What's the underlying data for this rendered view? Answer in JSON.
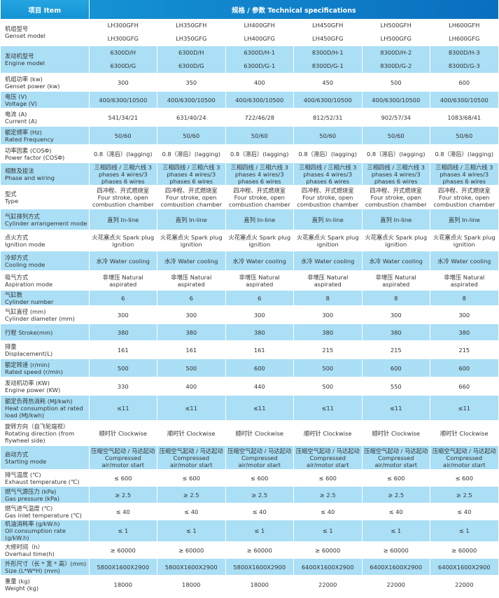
{
  "header": {
    "item_label": "项目 Item",
    "specs_label": "规格 / 参数   Technical specifications"
  },
  "header_colors": {
    "start": "#24a4e0",
    "end": "#0a6ec0",
    "row_alt": "#aadff5"
  },
  "rows": [
    {
      "zh": "机组型号",
      "en": "Genset model",
      "values": [
        [
          "LH300GFH",
          "LH300GFG"
        ],
        [
          "LH350GFH",
          "LH350GFG"
        ],
        [
          "LH400GFH",
          "LH400GFG"
        ],
        [
          "LH450GFH",
          "LH450GFG"
        ],
        [
          "LH500GFH",
          "LH500GFG"
        ],
        [
          "LH600GFH",
          "LH600GFG"
        ]
      ]
    },
    {
      "zh": "发动机型号",
      "en": "Engine model",
      "values": [
        [
          "6300D/H",
          "6300D/G"
        ],
        [
          "6300D/H",
          "6300D/G"
        ],
        [
          "6300D/H-1",
          "6300D/G-1"
        ],
        [
          "8300D/H-1",
          "8300D/G-1"
        ],
        [
          "8300D/H-2",
          "8300D/G-2"
        ],
        [
          "8300D/H-3",
          "8300D/G-3"
        ]
      ]
    },
    {
      "zh": "机组功率 (kw)",
      "en": "Genset power (kw)",
      "values": [
        "300",
        "350",
        "400",
        "450",
        "500",
        "600"
      ]
    },
    {
      "zh": "电压 (V)",
      "en": "Voltage (V)",
      "values": [
        "400/6300/10500",
        "400/6300/10500",
        "400/6300/10500",
        "400/6300/10500",
        "400/6300/10500",
        "400/6300/10500"
      ]
    },
    {
      "zh": "电流 (A)",
      "en": "Current (A)",
      "values": [
        "541/34/21",
        "631/40/24",
        "722/46/28",
        "812/52/31",
        "902/57/34",
        "1083/68/41"
      ]
    },
    {
      "zh": "额定频率 (Hz)",
      "en": "Rated Frequency",
      "values": [
        "50/60",
        "50/60",
        "50/60",
        "50/60",
        "50/60",
        "50/60"
      ]
    },
    {
      "zh": "功率因素 (COSΦ)",
      "en": "Power factor (COSΦ)",
      "values": [
        "0.8（滞后）(lagging)",
        "0.8（滞后）(lagging)",
        "0.8（滞后）(lagging)",
        "0.8（滞后）(lagging)",
        "0.8（滞后）(lagging)",
        "0.8（滞后）(lagging)"
      ]
    },
    {
      "zh": "相数及接法",
      "en": "Phase and wiring",
      "values": [
        "三相四线 / 三相六线 3 phases 4 wires/3 phases 6 wires",
        "三相四线 / 三相六线 3 phases 4 wires/3 phases 6 wires",
        "三相四线 / 三相六线 3 phases 4 wires/3 phases 6 wires",
        "三相四线 / 三相六线 3 phases 4 wires/3 phases 6 wires",
        "三相四线 / 三相六线 3 phases 4 wires/3 phases 6 wires",
        "三相四线 / 三相六线 3 phases 4 wires/3 phases 6 wires"
      ]
    },
    {
      "zh": "型式",
      "en": "Type",
      "values": [
        "四冲程、开式燃烧室 Four stroke, open combustion chamber",
        "四冲程、开式燃烧室 Four stroke, open combustion chamber",
        "四冲程、开式燃烧室 Four stroke, open combustion chamber",
        "四冲程、开式燃烧室 Four stroke, open combustion chamber",
        "四冲程、开式燃烧室 Four stroke, open combustion chamber",
        "四冲程、开式燃烧室 Four stroke, open combustion chamber"
      ]
    },
    {
      "zh": "气缸排列方式",
      "en": "Cylinder arrangement mode",
      "values": [
        "直列 In-line",
        "直列 In-line",
        "直列 In-line",
        "直列 In-line",
        "直列 In-line",
        "直列 In-line"
      ]
    },
    {
      "zh": "点火方式",
      "en": "Ignition mode",
      "values": [
        "火花塞点火 Spark plug ignition",
        "火花塞点火 Spark plug ignition",
        "火花塞点火 Spark plug ignition",
        "火花塞点火 Spark plug ignition",
        "火花塞点火 Spark plug ignition",
        "火花塞点火 Spark plug ignition"
      ]
    },
    {
      "zh": "冷却方式",
      "en": "Cooling mode",
      "values": [
        "水冷 Water cooling",
        "水冷 Water cooling",
        "水冷 Water cooling",
        "水冷 Water cooling",
        "水冷 Water cooling",
        "水冷 Water cooling"
      ]
    },
    {
      "zh": "吸气方式",
      "en": "Aspiration mode",
      "values": [
        "非增压 Natural aspirated",
        "非增压 Natural aspirated",
        "非增压 Natural aspirated",
        "非增压 Natural aspirated",
        "非增压 Natural aspirated",
        "非增压 Natural aspirated"
      ]
    },
    {
      "zh": "气缸数",
      "en": "Cylinder number",
      "values": [
        "6",
        "6",
        "6",
        "8",
        "8",
        "8"
      ]
    },
    {
      "zh": "气缸直径 (mm)",
      "en": "Cylinder diameter (mm)",
      "values": [
        "300",
        "300",
        "300",
        "300",
        "300",
        "300"
      ]
    },
    {
      "zh": "",
      "en": "行程 Stroke(mm)",
      "values": [
        "380",
        "380",
        "380",
        "380",
        "380",
        "380"
      ]
    },
    {
      "zh": "排量",
      "en": "Displacement(L)",
      "values": [
        "161",
        "161",
        "161",
        "215",
        "215",
        "215"
      ]
    },
    {
      "zh": "额定转速 (r/min)",
      "en": "Rated speed (r/min)",
      "values": [
        "500",
        "500",
        "600",
        "500",
        "600",
        "600"
      ]
    },
    {
      "zh": "发动机功率 (KW)",
      "en": "Engine power (KW)",
      "values": [
        "330",
        "400",
        "440",
        "500",
        "550",
        "660"
      ]
    },
    {
      "zh": "额定负荷热消耗 (MJ/kwh)",
      "en": "Heat consumption at rated load (MJ/kwh)",
      "values": [
        "≤11",
        "≤11",
        "≤11",
        "≤11",
        "≤11",
        "≤11"
      ]
    },
    {
      "zh": "旋转方向（自飞轮端视）",
      "en": "Rotating direction (from flywheel side)",
      "values": [
        "顺时针 Clockwise",
        "顺时针 Clockwise",
        "顺时针 Clockwise",
        "顺时针 Clockwise",
        "顺时针 Clockwise",
        "顺时针 Clockwise"
      ]
    },
    {
      "zh": "启动方式",
      "en": "Starting mode",
      "values": [
        "压缩空气起动 / 马达起动 Compressed air/motor start",
        "压缩空气起动 / 马达起动 Compressed air/motor start",
        "压缩空气起动 / 马达起动 Compressed air/motor start",
        "压缩空气起动 / 马达起动 Compressed air/motor start",
        "压缩空气起动 / 马达起动 Compressed air/motor start",
        "压缩空气起动 / 马达起动 Compressed air/motor start"
      ]
    },
    {
      "zh": "排气温度 (℃)",
      "en": "Exhaust temperature (℃)",
      "values": [
        "≤ 600",
        "≤ 600",
        "≤ 600",
        "≤ 600",
        "≤ 600",
        "≤ 600"
      ]
    },
    {
      "zh": "燃气气源压力 (kPa)",
      "en": "Gas pressure (kPa)",
      "values": [
        "≥ 2.5",
        "≥ 2.5",
        "≥ 2.5",
        "≥ 2.5",
        "≥ 2.5",
        "≥ 2.5"
      ]
    },
    {
      "zh": "燃气进气温度 (℃)",
      "en": "Gas inlet temperature (℃)",
      "values": [
        "≤ 40",
        "≤ 40",
        "≤ 40",
        "≤ 40",
        "≤ 40",
        "≤ 40"
      ]
    },
    {
      "zh": "机油消耗率 (g/kW.h)",
      "en": "Oil consumption rate (g/kW.h)",
      "values": [
        "≤ 1",
        "≤ 1",
        "≤ 1",
        "≤ 1",
        "≤ 1",
        "≤ 1"
      ]
    },
    {
      "zh": "大修时间（h）",
      "en": "Overhaul time(h)",
      "values": [
        "≥ 60000",
        "≥ 60000",
        "≥ 60000",
        "≥ 60000",
        "≥ 60000",
        "≥ 60000"
      ]
    },
    {
      "zh": "外形尺寸（长 * 宽 * 高）(mm)",
      "en": "Size (L*W*H) (mm)",
      "values": [
        "5800X1600X2900",
        "5800X1600X2900",
        "5800X1600X2900",
        "6400X1600X2900",
        "6400X1600X2900",
        "6400X1600X2900"
      ]
    },
    {
      "zh": "重量 (kg)",
      "en": "Weight (kg)",
      "values": [
        "18000",
        "18000",
        "18000",
        "22000",
        "22000",
        "22000"
      ]
    }
  ]
}
